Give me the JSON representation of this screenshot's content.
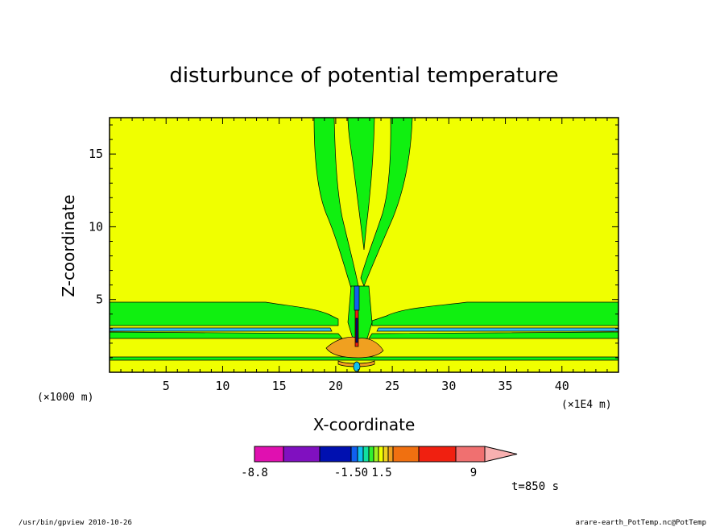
{
  "chart_data": {
    "type": "heatmap",
    "title": "disturbunce of potential temperature",
    "xlabel": "X-coordinate",
    "ylabel": "Z-coordinate",
    "x_unit": "(×1000 m)",
    "x_scale_label": "(×1E4 m)",
    "xlim": [
      0,
      45
    ],
    "ylim": [
      0,
      17.5
    ],
    "xticks": [
      "5",
      "10",
      "15",
      "20",
      "25",
      "30",
      "35",
      "40"
    ],
    "yticks": [
      "5",
      "10",
      "15"
    ],
    "xtick_values": [
      5,
      10,
      15,
      20,
      25,
      30,
      35,
      40
    ],
    "ytick_values": [
      5,
      10,
      15
    ],
    "background_level_color": "#f0ff00",
    "colorbar": {
      "colors": [
        "#e010b0",
        "#8010c0",
        "#0010b0",
        "#1060f0",
        "#10c0f0",
        "#10e0a0",
        "#30f030",
        "#a0f020",
        "#f0ff00",
        "#f0d020",
        "#f0a020",
        "#f07010",
        "#f02010",
        "#f07070",
        "#f8b0b0"
      ],
      "tick_labels": [
        "-8.8",
        "-1.50",
        "1.5",
        "9"
      ]
    },
    "time_label": "t=850 s",
    "grid": false
  },
  "footer": {
    "left": "/usr/bin/gpview   2010-10-26",
    "right": "arare-earth_PotTemp.nc@PotTemp"
  }
}
